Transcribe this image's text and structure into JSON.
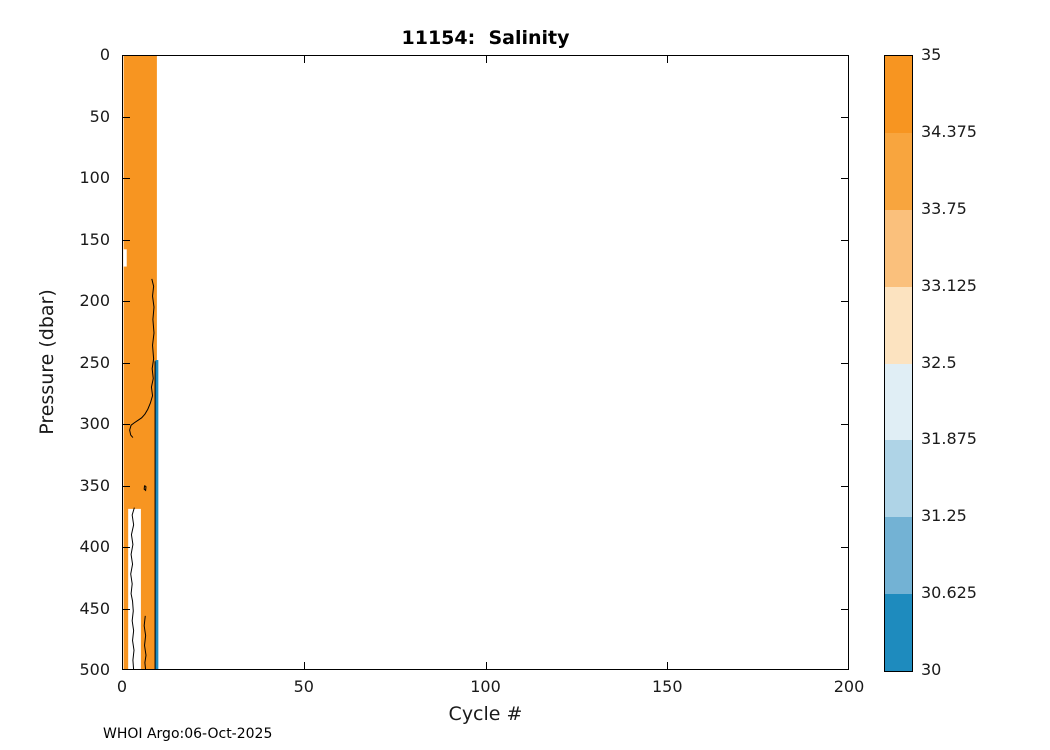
{
  "chart_data": {
    "type": "heatmap",
    "title": "11154:  Salinity",
    "xlabel": "Cycle #",
    "ylabel": "Pressure (dbar)",
    "footer": "WHOI Argo:06-Oct-2025",
    "xlim": [
      0,
      200
    ],
    "ylim": [
      0,
      500
    ],
    "y_inverted": true,
    "grid": false,
    "x_ticks": [
      0,
      50,
      100,
      150,
      200
    ],
    "y_ticks": [
      0,
      50,
      100,
      150,
      200,
      250,
      300,
      350,
      400,
      450,
      500
    ],
    "colorbar": {
      "position": "right",
      "vmin": 30,
      "vmax": 35,
      "tick_labels": [
        "35",
        "34.375",
        "33.75",
        "33.125",
        "32.5",
        "31.875",
        "31.25",
        "30.625",
        "30"
      ],
      "band_colors_top_to_bottom": [
        "#F79521",
        "#F8A53E",
        "#FAC07C",
        "#FCE3C0",
        "#E0EEF5",
        "#AFD4E7",
        "#73B2D4",
        "#1E8BBE"
      ]
    },
    "shapes": [
      {
        "kind": "rect",
        "name": "high-salinity-band",
        "desc": "salinity 34.375-35 near cycles 1-9, all depths",
        "x": [
          0.45,
          9.6
        ],
        "p": [
          0,
          500
        ],
        "color": "#F79521"
      },
      {
        "kind": "rect",
        "name": "edge-notch-white",
        "desc": "missing data notch at band left edge",
        "x": [
          0.45,
          1.3
        ],
        "p": [
          158,
          172
        ],
        "color": "#FFFFFF"
      },
      {
        "kind": "rect",
        "name": "deep-gap-white",
        "desc": "missing data region below 370 dbar, cycles 2-5",
        "x": [
          1.7,
          5.2
        ],
        "p": [
          369,
          500
        ],
        "color": "#FFFFFF"
      },
      {
        "kind": "rect",
        "name": "low-salinity-column",
        "desc": "salinity ~30-30.625 at cycle 9, 250-500 dbar",
        "x": [
          9.2,
          10.0
        ],
        "p": [
          248,
          500
        ],
        "color": "#1E8BBE"
      },
      {
        "kind": "polyline",
        "name": "contour-line-main",
        "color": "#000000",
        "width": 1,
        "points": [
          [
            8.2,
            182
          ],
          [
            8.7,
            188
          ],
          [
            8.4,
            196
          ],
          [
            8.8,
            205
          ],
          [
            8.5,
            215
          ],
          [
            8.8,
            226
          ],
          [
            8.4,
            236
          ],
          [
            8.7,
            247
          ],
          [
            8.3,
            255
          ],
          [
            8.6,
            263
          ],
          [
            8.1,
            270
          ],
          [
            8.4,
            277
          ],
          [
            7.8,
            283
          ],
          [
            7.1,
            288
          ],
          [
            6.3,
            292
          ],
          [
            5.4,
            295
          ],
          [
            4.4,
            297
          ],
          [
            3.4,
            299
          ],
          [
            2.5,
            301
          ],
          [
            2.1,
            305
          ],
          [
            2.4,
            309
          ],
          [
            3.0,
            311
          ]
        ]
      },
      {
        "kind": "polyline",
        "name": "contour-dot",
        "color": "#000000",
        "width": 1,
        "points": [
          [
            6.2,
            350
          ],
          [
            6.6,
            351
          ],
          [
            6.5,
            354
          ],
          [
            6.1,
            353
          ],
          [
            6.2,
            350
          ]
        ]
      },
      {
        "kind": "polyline",
        "name": "contour-line-gap-edge",
        "color": "#000000",
        "width": 1,
        "points": [
          [
            3.4,
            368
          ],
          [
            2.8,
            374
          ],
          [
            3.2,
            382
          ],
          [
            2.6,
            390
          ],
          [
            3.0,
            398
          ],
          [
            2.5,
            406
          ],
          [
            2.9,
            414
          ],
          [
            2.4,
            422
          ],
          [
            2.8,
            430
          ],
          [
            2.5,
            438
          ],
          [
            2.9,
            444
          ],
          [
            3.1,
            452
          ],
          [
            2.8,
            460
          ],
          [
            3.2,
            468
          ],
          [
            2.9,
            476
          ],
          [
            3.3,
            484
          ],
          [
            3.0,
            492
          ],
          [
            3.2,
            500
          ]
        ]
      },
      {
        "kind": "polyline",
        "name": "contour-line-bottom",
        "color": "#000000",
        "width": 1,
        "points": [
          [
            6.4,
            456
          ],
          [
            6.1,
            464
          ],
          [
            6.5,
            472
          ],
          [
            6.2,
            480
          ],
          [
            6.6,
            488
          ],
          [
            6.3,
            494
          ],
          [
            6.5,
            500
          ]
        ]
      },
      {
        "kind": "polyline",
        "name": "contour-line-blue-edge",
        "color": "#000000",
        "width": 1,
        "points": [
          [
            9.1,
            249
          ],
          [
            9.1,
            500
          ]
        ]
      }
    ]
  }
}
